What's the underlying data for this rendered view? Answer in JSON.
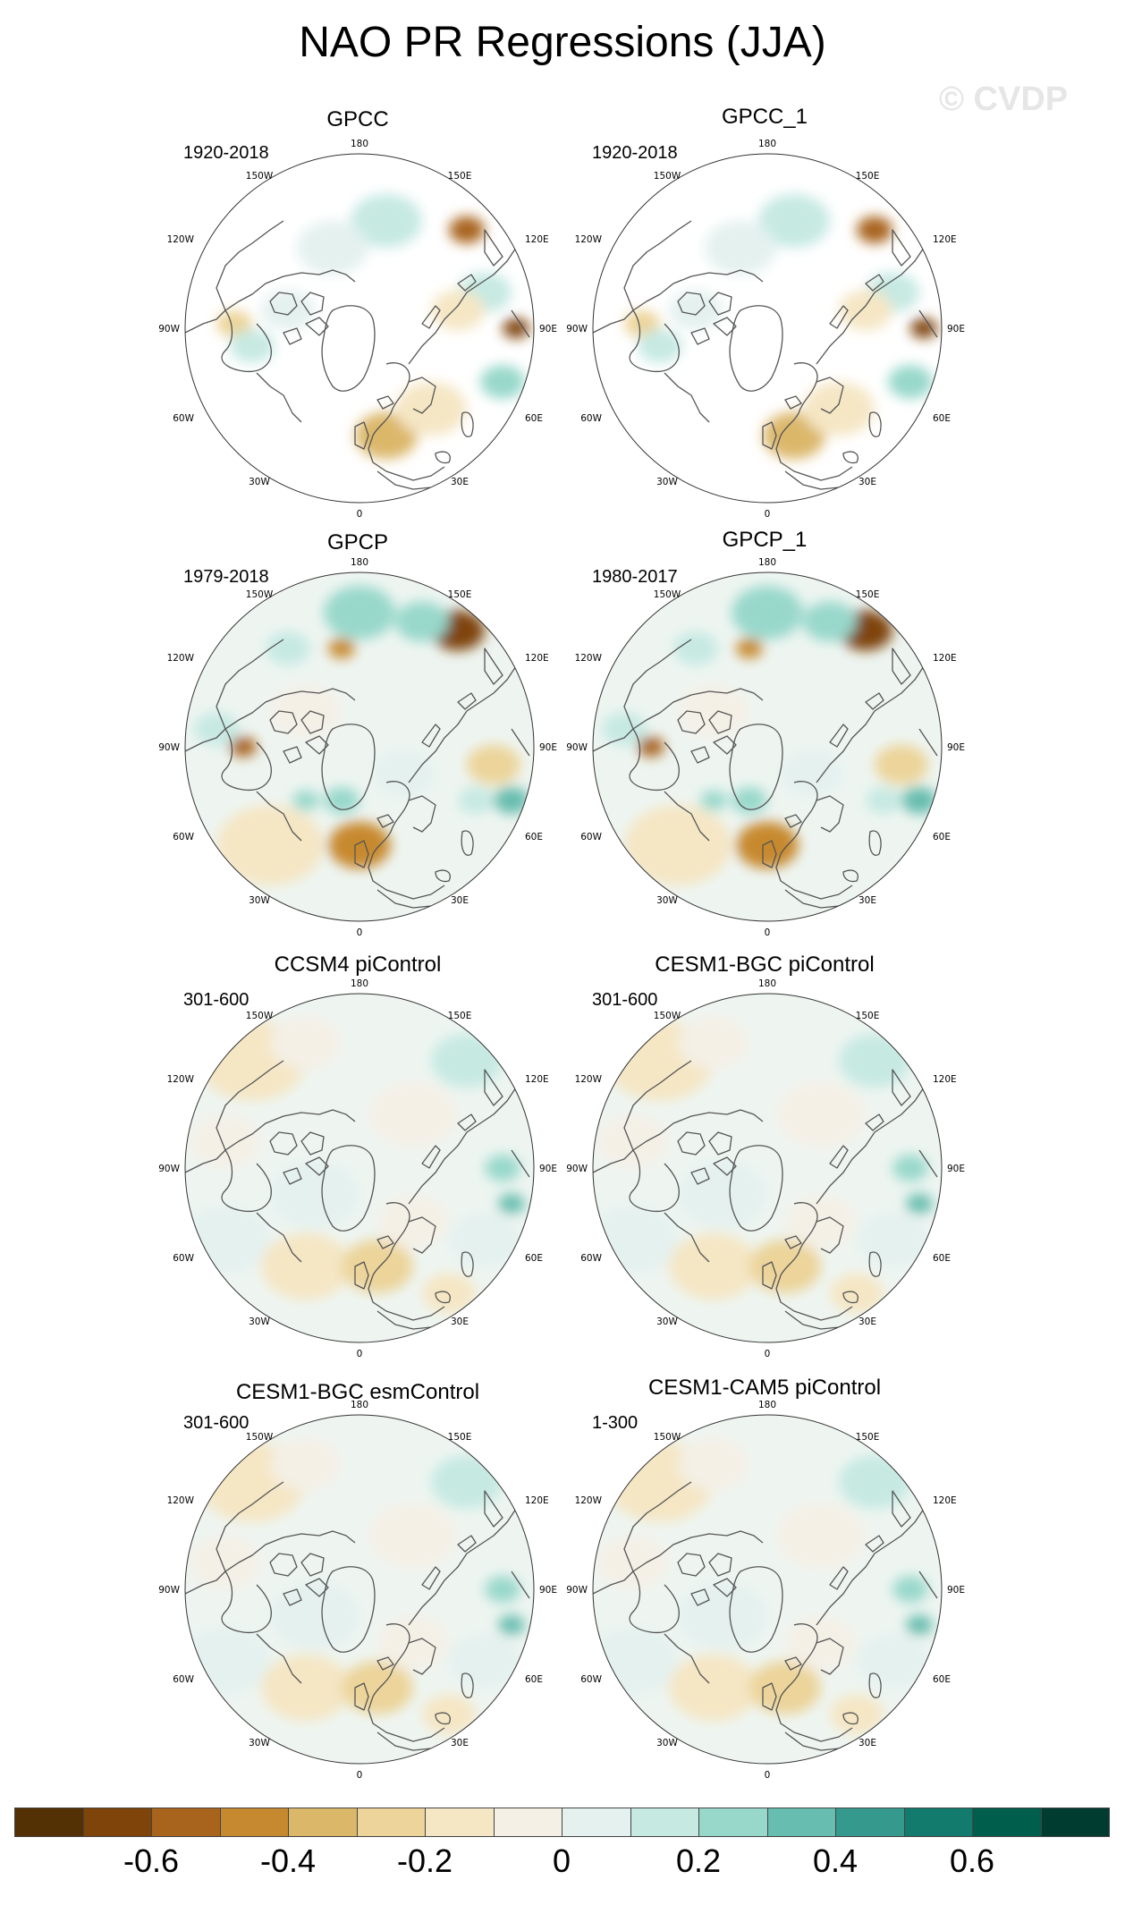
{
  "title": "NAO PR Regressions (JJA)",
  "watermark": "© CVDP",
  "lon_labels": {
    "top": "180",
    "bottom": "0",
    "upper_left": "150W",
    "upper_right": "150E",
    "mid_upper_left": "120W",
    "mid_upper_right": "120E",
    "left": "90W",
    "right": "90E",
    "mid_lower_left": "60W",
    "mid_lower_right": "60E",
    "lower_left": "30W",
    "lower_right": "30E"
  },
  "panels": [
    {
      "title": "GPCC",
      "period": "1920-2018",
      "land_only": true
    },
    {
      "title": "GPCC_1",
      "period": "1920-2018",
      "land_only": true
    },
    {
      "title": "GPCP",
      "period": "1979-2018",
      "land_only": false
    },
    {
      "title": "GPCP_1",
      "period": "1980-2017",
      "land_only": false
    },
    {
      "title": "CCSM4 piControl",
      "period": "301-600",
      "land_only": false
    },
    {
      "title": "CESM1-BGC piControl",
      "period": "301-600",
      "land_only": false
    },
    {
      "title": "CESM1-BGC esmControl",
      "period": "301-600",
      "land_only": false
    },
    {
      "title": "CESM1-CAM5 piControl",
      "period": "1-300",
      "land_only": false
    }
  ],
  "colorbar": {
    "colors": [
      "#543005",
      "#7f4409",
      "#a8641c",
      "#c7892f",
      "#dbb76a",
      "#ecd49a",
      "#f5e6c4",
      "#f4f0e6",
      "#e4f1ef",
      "#c6e9e2",
      "#98d8cb",
      "#67bdaf",
      "#35998e",
      "#137b6d",
      "#005e4d",
      "#003c30"
    ],
    "tick_labels": [
      "-0.6",
      "-0.4",
      "-0.2",
      "0",
      "0.2",
      "0.4",
      "0.6"
    ]
  }
}
